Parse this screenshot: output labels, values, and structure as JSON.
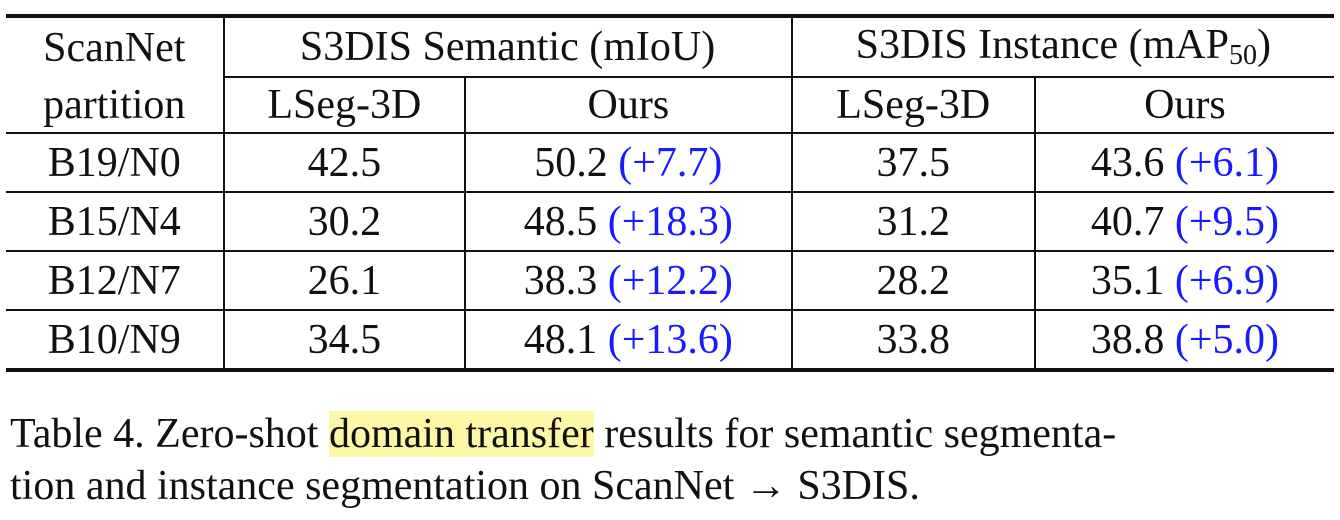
{
  "table": {
    "header": {
      "partition_line1": "ScanNet",
      "partition_line2": "partition",
      "semantic_group": "S3DIS Semantic (mIoU)",
      "instance_group_prefix": "S3DIS Instance (mAP",
      "instance_group_sub": "50",
      "instance_group_suffix": ")",
      "sem_lseg": "LSeg-3D",
      "sem_ours": "Ours",
      "inst_lseg": "LSeg-3D",
      "inst_ours": "Ours"
    },
    "rows": [
      {
        "partition": "B19/N0",
        "sem_lseg": "42.5",
        "sem_ours": "50.2",
        "sem_delta": "(+7.7)",
        "inst_lseg": "37.5",
        "inst_ours": "43.6",
        "inst_delta": "(+6.1)"
      },
      {
        "partition": "B15/N4",
        "sem_lseg": "30.2",
        "sem_ours": "48.5",
        "sem_delta": "(+18.3)",
        "inst_lseg": "31.2",
        "inst_ours": "40.7",
        "inst_delta": "(+9.5)"
      },
      {
        "partition": "B12/N7",
        "sem_lseg": "26.1",
        "sem_ours": "38.3",
        "sem_delta": "(+12.2)",
        "inst_lseg": "28.2",
        "inst_ours": "35.1",
        "inst_delta": "(+6.9)"
      },
      {
        "partition": "B10/N9",
        "sem_lseg": "34.5",
        "sem_ours": "48.1",
        "sem_delta": "(+13.6)",
        "inst_lseg": "33.8",
        "inst_ours": "38.8",
        "inst_delta": "(+5.0)"
      }
    ]
  },
  "caption": {
    "prefix": "Table 4. Zero-shot ",
    "highlighted": "domain transfer",
    "line1_suffix": " results for semantic segmenta-",
    "line2": "tion and instance segmentation on ScanNet → S3DIS."
  },
  "colors": {
    "delta_text": "#1a1aff",
    "highlight": "#fdf8a8",
    "rule": "#111111"
  }
}
